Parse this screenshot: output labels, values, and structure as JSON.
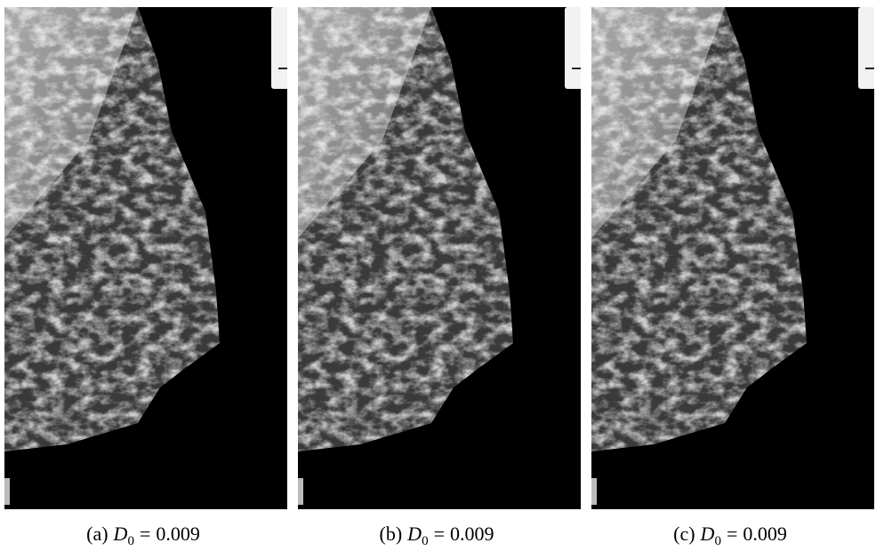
{
  "figure": {
    "panels": [
      {
        "label": "(a)",
        "symbol": "D",
        "subscript": "0",
        "relation": "=",
        "value": "0.009"
      },
      {
        "label": "(b)",
        "symbol": "D",
        "subscript": "0",
        "relation": "=",
        "value": "0.009"
      },
      {
        "label": "(c)",
        "symbol": "D",
        "subscript": "0",
        "relation": "=",
        "value": "0.009"
      }
    ]
  }
}
